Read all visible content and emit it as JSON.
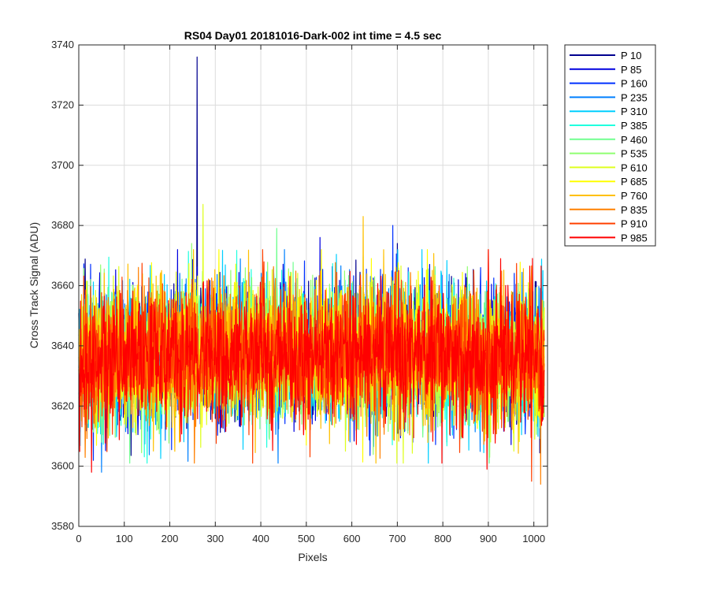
{
  "chart_data": {
    "type": "line",
    "title": "RS04 Day01 20181016-Dark-002 int time = 4.5 sec",
    "xlabel": "Pixels",
    "ylabel": "Cross Track Signal (ADU)",
    "xlim": [
      0,
      1030
    ],
    "ylim": [
      3580,
      3740
    ],
    "xticks": [
      0,
      100,
      200,
      300,
      400,
      500,
      600,
      700,
      800,
      900,
      1000
    ],
    "yticks": [
      3580,
      3600,
      3620,
      3640,
      3660,
      3680,
      3700,
      3720,
      3740
    ],
    "grid": true,
    "legend_position": "outside-top-right",
    "x_range": [
      0,
      1023
    ],
    "series": [
      {
        "name": "P 10",
        "color": "#00008F",
        "center": 3635,
        "spread": 11,
        "peaks": [
          [
            260,
            3736
          ],
          [
            700,
            3674
          ]
        ]
      },
      {
        "name": "P 85",
        "color": "#0000DF",
        "center": 3635,
        "spread": 11,
        "peaks": [
          [
            530,
            3676
          ]
        ]
      },
      {
        "name": "P 160",
        "color": "#0030FF",
        "center": 3635,
        "spread": 11,
        "peaks": [
          [
            690,
            3680
          ]
        ]
      },
      {
        "name": "P 235",
        "color": "#0080FF",
        "center": 3635,
        "spread": 11,
        "peaks": [
          [
            50,
            3598
          ]
        ]
      },
      {
        "name": "P 310",
        "color": "#00CFFF",
        "center": 3635,
        "spread": 11,
        "peaks": [
          [
            1020,
            3665
          ]
        ]
      },
      {
        "name": "P 385",
        "color": "#20FFDF",
        "center": 3635,
        "spread": 11,
        "peaks": [
          [
            150,
            3601
          ]
        ]
      },
      {
        "name": "P 460",
        "color": "#70FF8F",
        "center": 3635,
        "spread": 11,
        "peaks": [
          [
            435,
            3679
          ]
        ]
      },
      {
        "name": "P 535",
        "color": "#8FFF70",
        "center": 3635,
        "spread": 11,
        "peaks": [
          [
            248,
            3674
          ]
        ]
      },
      {
        "name": "P 610",
        "color": "#DFFF20",
        "center": 3635,
        "spread": 11,
        "peaks": [
          [
            273,
            3687
          ],
          [
            900,
            3672
          ]
        ]
      },
      {
        "name": "P 685",
        "color": "#FFFF00",
        "center": 3635,
        "spread": 11,
        "peaks": [
          [
            500,
            3607
          ]
        ]
      },
      {
        "name": "P 760",
        "color": "#FFC000",
        "center": 3635,
        "spread": 11,
        "peaks": [
          [
            625,
            3683
          ]
        ]
      },
      {
        "name": "P 835",
        "color": "#FF8000",
        "center": 3635,
        "spread": 11,
        "peaks": [
          [
            1015,
            3594
          ]
        ]
      },
      {
        "name": "P 910",
        "color": "#FF4000",
        "center": 3635,
        "spread": 11,
        "peaks": [
          [
            995,
            3595
          ]
        ]
      },
      {
        "name": "P 985",
        "color": "#FF0000",
        "center": 3635,
        "spread": 11,
        "peaks": [
          [
            28,
            3598
          ],
          [
            897,
            3599
          ]
        ]
      }
    ]
  }
}
